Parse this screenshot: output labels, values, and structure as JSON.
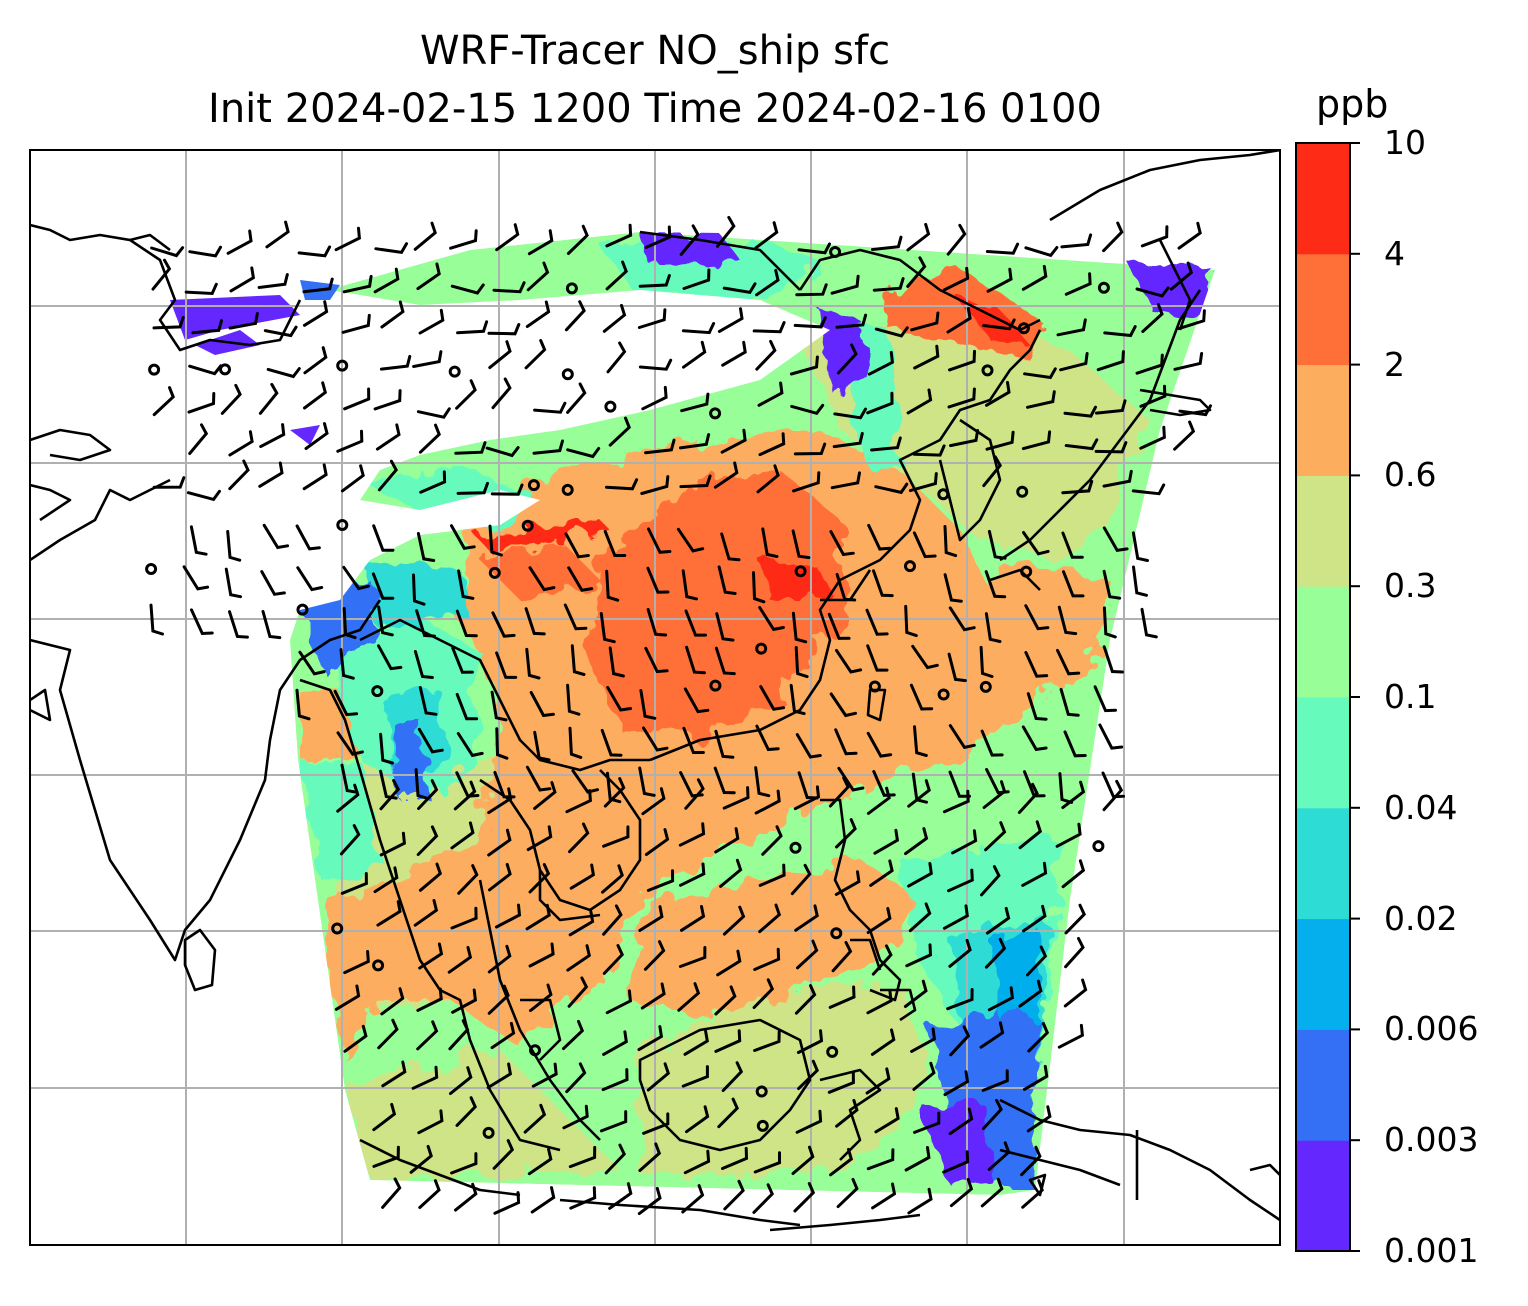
{
  "title": {
    "line1": "WRF-Tracer NO_ship sfc",
    "line2": "Init 2024-02-15 1200 Time 2024-02-16 0100"
  },
  "colorbar": {
    "unit": "ppb",
    "levels": [
      "0.001",
      "0.003",
      "0.006",
      "0.02",
      "0.04",
      "0.1",
      "0.3",
      "0.6",
      "2",
      "4",
      "10"
    ],
    "colors": [
      "#6428ff",
      "#3370f5",
      "#05aeec",
      "#2ddcd5",
      "#66fbbd",
      "#98fe98",
      "#cfe387",
      "#fdad5e",
      "#fe7038",
      "#fe2b17"
    ]
  },
  "map": {
    "gridlines": true,
    "coastline_color": "#000000",
    "grid_color": "#b0b0b0",
    "symbols": "wind barbs and calm-wind circles"
  }
}
